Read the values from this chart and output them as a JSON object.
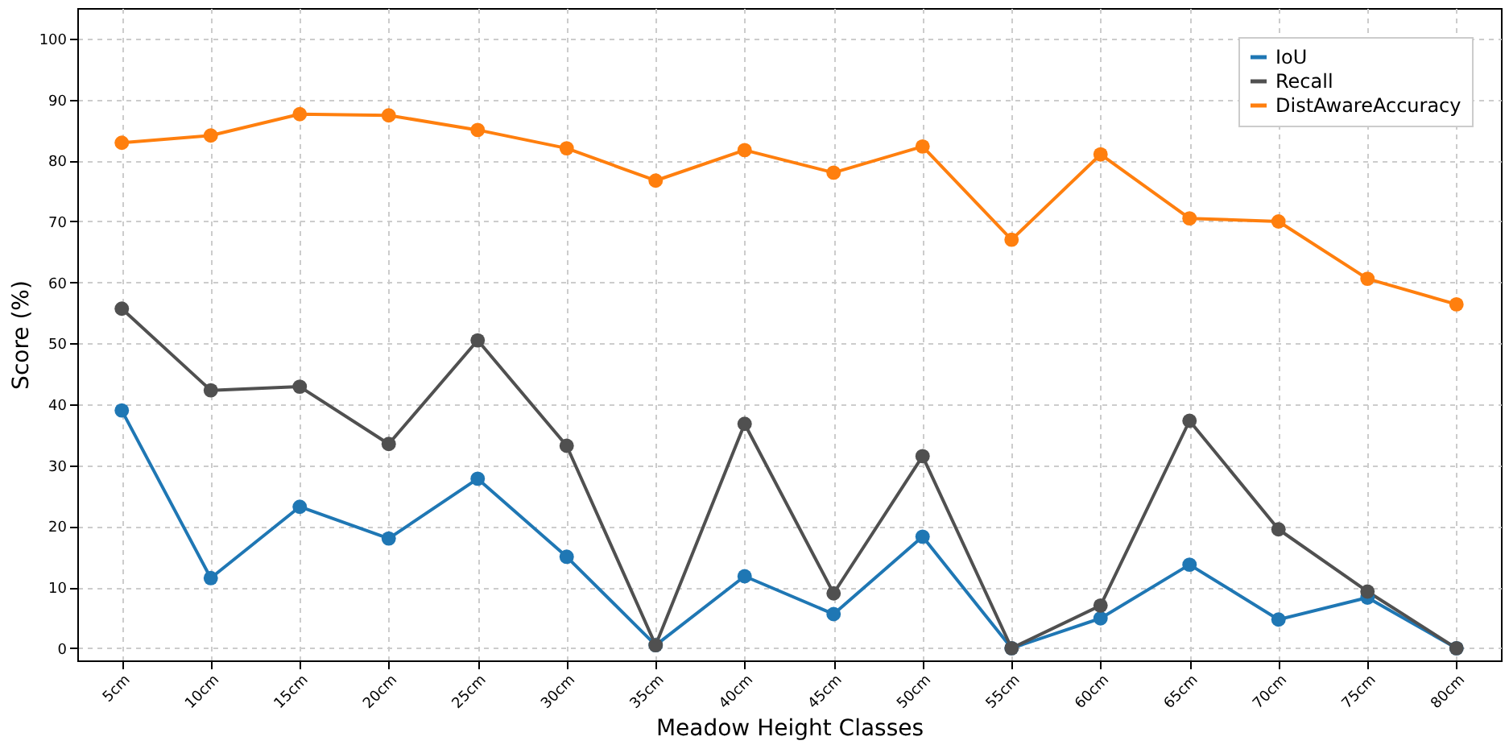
{
  "chart_data": {
    "type": "line",
    "xlabel": "Meadow Height Classes",
    "ylabel": "Score (%)",
    "categories": [
      "5cm",
      "10cm",
      "15cm",
      "20cm",
      "25cm",
      "30cm",
      "35cm",
      "40cm",
      "45cm",
      "50cm",
      "55cm",
      "60cm",
      "65cm",
      "70cm",
      "75cm",
      "80cm"
    ],
    "series": [
      {
        "name": "IoU",
        "color": "#1f77b4",
        "values": [
          39,
          11.5,
          23.2,
          18,
          27.8,
          15,
          0.5,
          11.8,
          5.6,
          18.3,
          0,
          4.9,
          13.7,
          4.7,
          8.3,
          0
        ]
      },
      {
        "name": "Recall",
        "color": "#505050",
        "values": [
          55.7,
          42.3,
          42.9,
          33.5,
          50.5,
          33.2,
          0.5,
          36.8,
          9,
          31.5,
          0,
          7,
          37.3,
          19.5,
          9.3,
          0
        ]
      },
      {
        "name": "DistAwareAccuracy",
        "color": "#ff7f0e",
        "values": [
          82.9,
          84.1,
          87.6,
          87.4,
          85,
          82,
          76.7,
          81.7,
          78,
          82.3,
          67,
          81,
          70.5,
          70,
          60.6,
          56.4
        ]
      }
    ],
    "ylim": [
      -2,
      105
    ],
    "yticks": [
      0,
      10,
      20,
      30,
      40,
      50,
      60,
      70,
      80,
      90,
      100
    ],
    "grid": true,
    "legend": "top right",
    "marker": "circle",
    "line_style": "solid"
  }
}
